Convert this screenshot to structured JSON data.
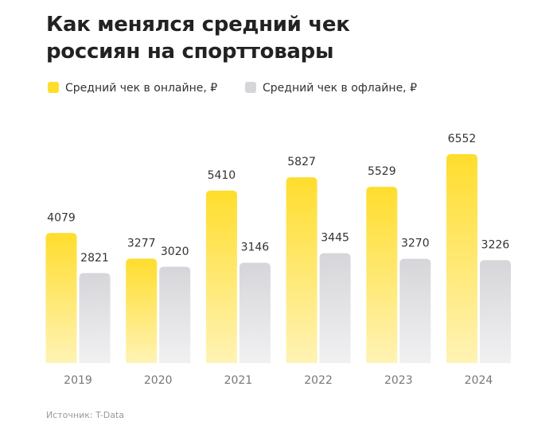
{
  "chart_data": {
    "type": "bar",
    "title": "Как менялся средний чек россиян на спорттовары",
    "source": "Источник: T-Data",
    "categories": [
      "2019",
      "2020",
      "2021",
      "2022",
      "2023",
      "2024"
    ],
    "series": [
      {
        "name": "Средний чек в онлайне, ₽",
        "color": "#ffdd2d",
        "values": [
          4079,
          3277,
          5410,
          5827,
          5529,
          6552
        ]
      },
      {
        "name": "Средний чек в офлайне, ₽",
        "color": "#d6d6da",
        "values": [
          2821,
          3020,
          3146,
          3445,
          3270,
          3226
        ]
      }
    ]
  }
}
